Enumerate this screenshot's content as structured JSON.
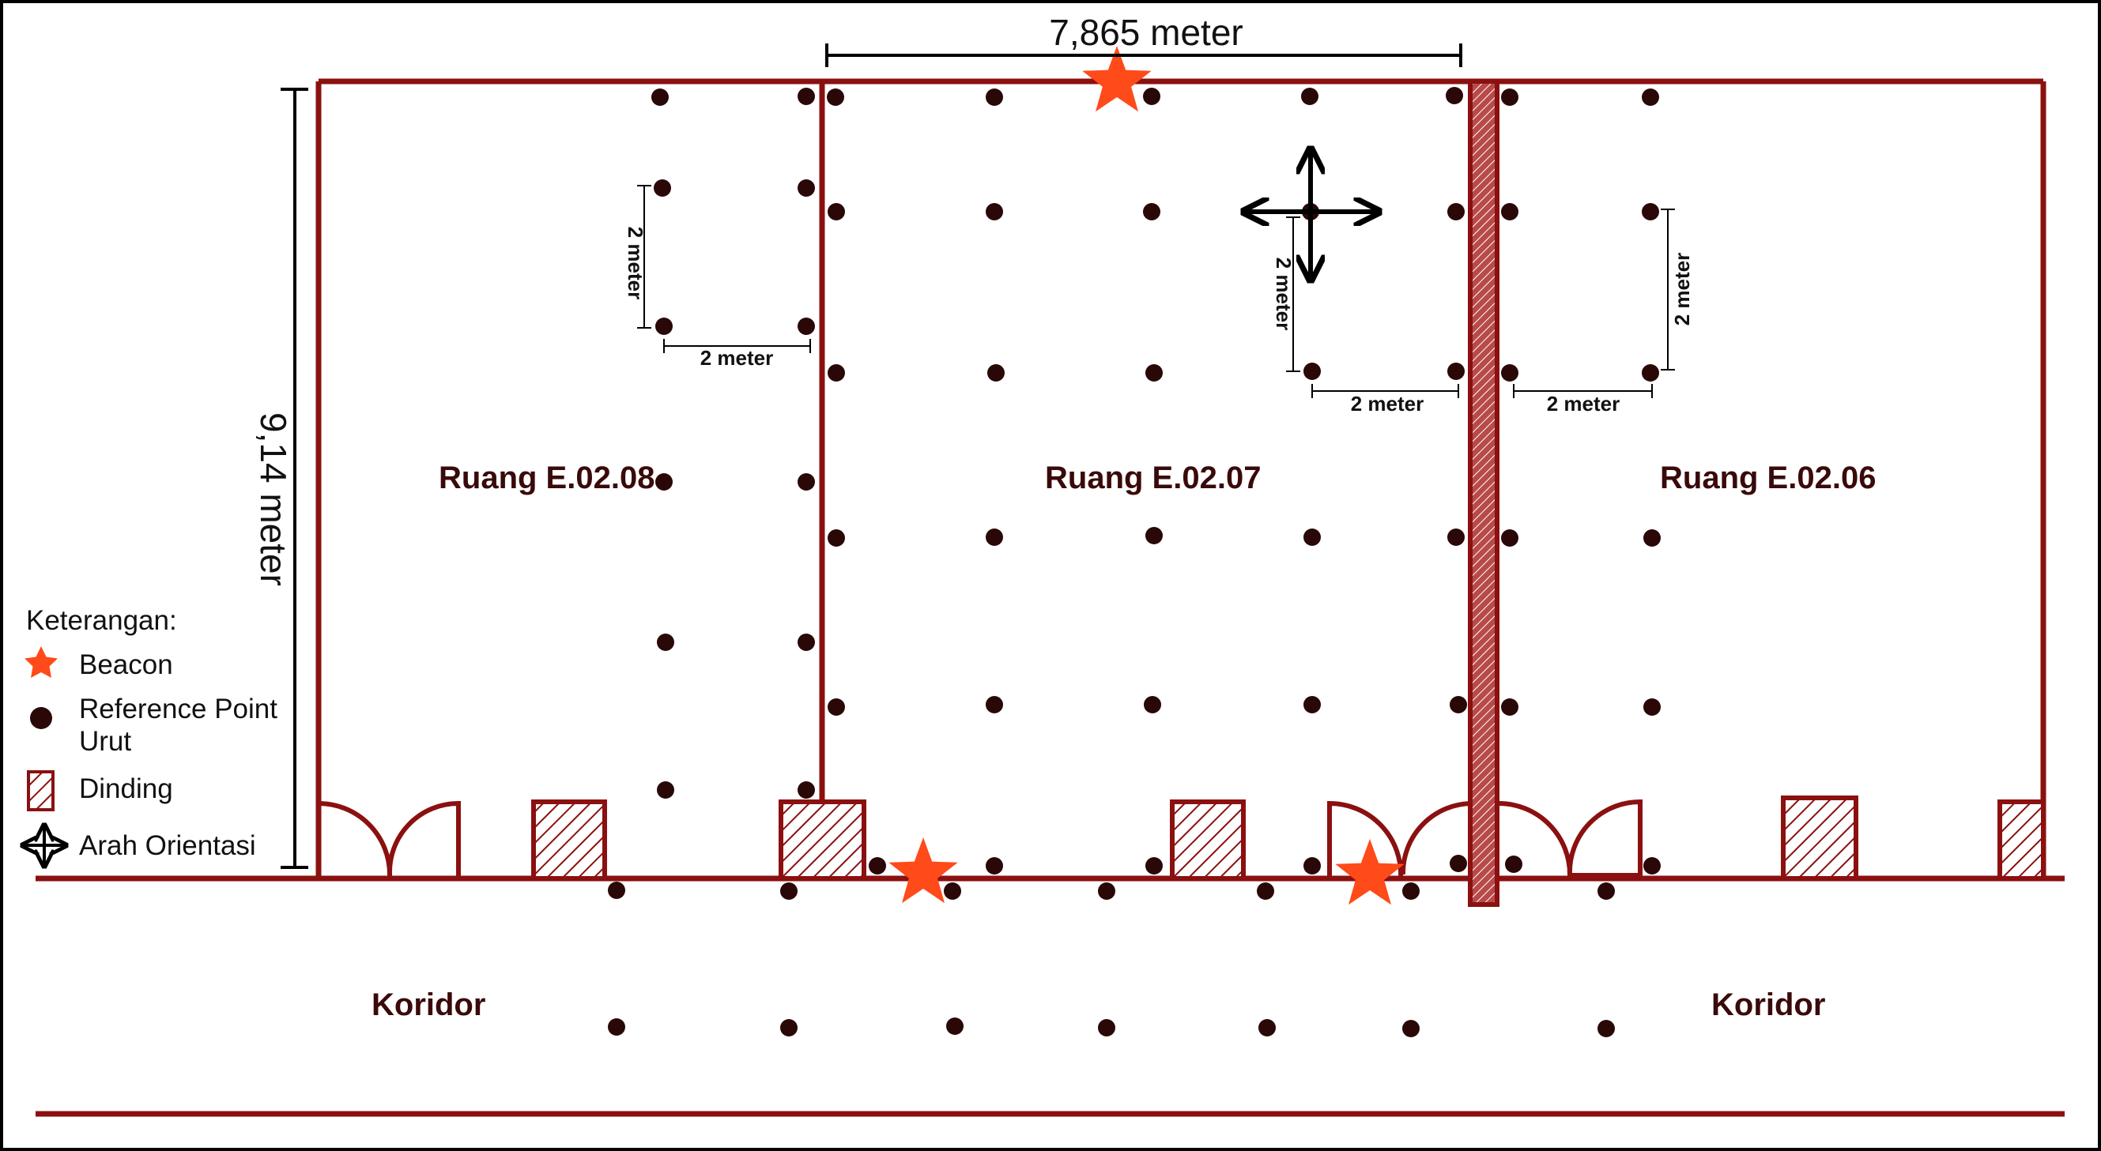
{
  "rooms": {
    "r08": "Ruang E.02.08",
    "r07": "Ruang E.02.07",
    "r06": "Ruang E.02.06"
  },
  "corridor": {
    "left": "Koridor",
    "right": "Koridor"
  },
  "dimensions": {
    "width": "7,865 meter",
    "height": "9,14 meter",
    "spacing": "2 meter"
  },
  "legend": {
    "title": "Keterangan:",
    "beacon": "Beacon",
    "rp_line1": "Reference Point",
    "rp_line2": "Urut",
    "wall": "Dinding",
    "orientation": "Arah Orientasi"
  },
  "colors": {
    "wall": "#8b1010",
    "point": "#2a0808",
    "beacon": "#ff4a1a",
    "text": "#3a0a0a"
  },
  "icons": {
    "beacon": "star-icon",
    "reference_point": "dot-icon",
    "wall": "hatched-square-icon",
    "orientation": "four-way-arrow-icon"
  }
}
